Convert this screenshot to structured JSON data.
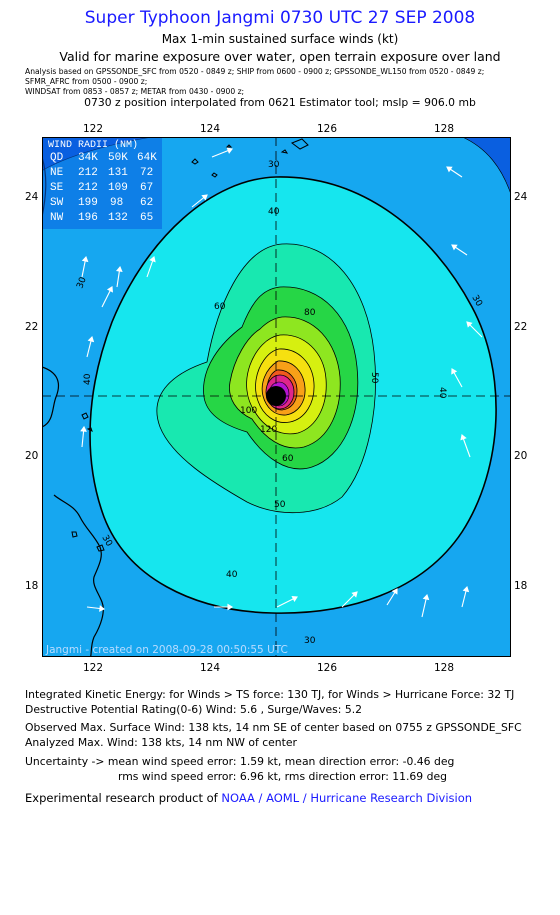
{
  "header": {
    "title": "Super Typhoon Jangmi 0730 UTC 27 SEP 2008",
    "subtitle": "Max 1-min sustained surface winds (kt)",
    "validity": "Valid for marine exposure over water, open terrain exposure over land",
    "analysis_line1": "Analysis based on   GPSSONDE_SFC from 0520 - 0849 z;  SHIP from 0600 - 0900 z;  GPSSONDE_WL150 from 0520 - 0849 z;",
    "analysis_line2": "SFMR_AFRC from 0500 - 0900 z;",
    "analysis_line3": "WINDSAT from 0853 - 0857 z;   METAR from 0430 - 0900 z;",
    "position_line": "0730 z position interpolated from 0621 Estimator tool; mslp = 906.0 mb"
  },
  "map": {
    "lon_ticks": [
      "122",
      "124",
      "126",
      "128"
    ],
    "lat_ticks": [
      "24",
      "22",
      "20",
      "18"
    ],
    "storm_center": {
      "lon": 125.3,
      "lat": 20.9
    },
    "wind_radii": {
      "title": "WIND RADII (NM)",
      "header": [
        "QD",
        "34K",
        "50K",
        "64K"
      ],
      "rows": [
        [
          "NE",
          "212",
          "131",
          "72"
        ],
        [
          "SE",
          "212",
          "109",
          "67"
        ],
        [
          "SW",
          "199",
          "98",
          "62"
        ],
        [
          "NW",
          "196",
          "132",
          "65"
        ]
      ]
    },
    "credit": "Jangmi - created on 2008-09-28 00:50:55 UTC",
    "contour_labels": [
      "30",
      "40",
      "50",
      "60",
      "80",
      "100",
      "120"
    ],
    "colors": {
      "ocean_low": "#0a5fe0",
      "c30": "#16a7f0",
      "c40": "#16e6ee",
      "c50": "#18e8b0",
      "c60": "#26d646",
      "c70": "#8ee620",
      "c80": "#d6f010",
      "c90": "#f6e010",
      "c100": "#f8a018",
      "c110": "#f05a1e",
      "c120": "#e0258a",
      "c130": "#b414d2",
      "eye": "#000000"
    }
  },
  "footer": {
    "ike": "Integrated Kinetic Energy:  for Winds > TS force: 130 TJ,  for Winds > Hurricane Force: 32 TJ",
    "dpr": "Destructive Potential Rating(0-6)   Wind: 5.6 , Surge/Waves: 5.2",
    "obs_max": "Observed Max. Surface Wind: 138 kts, 14 nm SE of center based on 0755 z GPSSONDE_SFC",
    "ana_max": "Analyzed Max. Wind: 138 kts, 14 nm NW of center",
    "unc1": "Uncertainty -> mean wind speed error: 1.59 kt,   mean direction error:  -0.46 deg",
    "unc2": "rms wind speed error: 6.96 kt,   rms direction error: 11.69 deg",
    "product_prefix": "Experimental research product of ",
    "product_org": "NOAA / AOML / Hurricane Research Division"
  }
}
